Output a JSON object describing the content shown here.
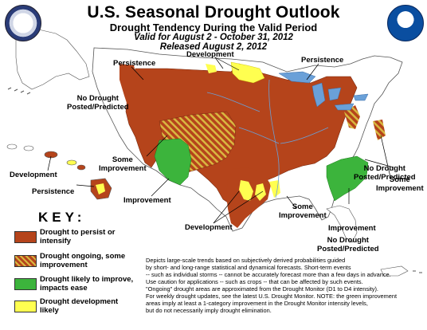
{
  "header": {
    "title": "U.S. Seasonal Drought Outlook",
    "subtitle": "Drought Tendency During the Valid Period",
    "valid": "Valid for August 2 - October 31, 2012",
    "released": "Released August 2, 2012"
  },
  "labels": {
    "persistence_west": "Persistence",
    "development_north": "Development",
    "persistence_east": "Persistence",
    "no_drought_west": [
      "No Drought",
      "Posted/Predicted"
    ],
    "some_improvement_mid": [
      "Some",
      "Improvement"
    ],
    "improvement_sw": "Improvement",
    "development_tx": "Development",
    "some_improvement_south": [
      "Some",
      "Improvement"
    ],
    "improvement_se": "Improvement",
    "some_improvement_east": [
      "Some",
      "Improvement"
    ],
    "no_drought_se": [
      "No Drought",
      "Posted/Predicted"
    ],
    "development_hi": "Development",
    "persistence_hi": "Persistence",
    "no_drought_pr": [
      "No Drought",
      "Posted/Predicted"
    ]
  },
  "key": {
    "title": "KEY:",
    "items": [
      {
        "label": [
          "Drought to persist or",
          "intensify"
        ],
        "color": "#b5441b",
        "pattern": "solid"
      },
      {
        "label": [
          "Drought ongoing, some",
          "improvement"
        ],
        "color": "#b5441b",
        "pattern": "hatched"
      },
      {
        "label": [
          "Drought likely to improve,",
          "impacts ease"
        ],
        "color": "#3cb43c",
        "pattern": "solid"
      },
      {
        "label": [
          "Drought development",
          "likely"
        ],
        "color": "#ffff50",
        "pattern": "solid"
      }
    ]
  },
  "notes": [
    "Depicts large-scale trends based on subjectively derived probabilities guided",
    "by short- and long-range statistical and dynamical forecasts. Short-term events",
    "-- such as individual storms -- cannot be accurately forecast more than a few days in advance.",
    "Use caution for applications -- such as crops -- that can be affected by such events.",
    "\"Ongoing\" drought areas are approximated from the Drought Monitor (D1 to D4 intensity).",
    "For weekly drought updates, see the latest U.S. Drought Monitor. NOTE: the green improvement",
    "areas imply at least a 1-category improvement in the Drought Monitor intensity levels,",
    "but do not necessarily imply drought elimination."
  ],
  "colors": {
    "persist": "#b5441b",
    "improve": "#3cb43c",
    "develop": "#ffff50",
    "hatch": "#c8a832",
    "land": "#ffffff",
    "water": "#6aa0d8"
  },
  "logos": {
    "left": "department-of-commerce-seal",
    "right": "noaa-logo"
  }
}
